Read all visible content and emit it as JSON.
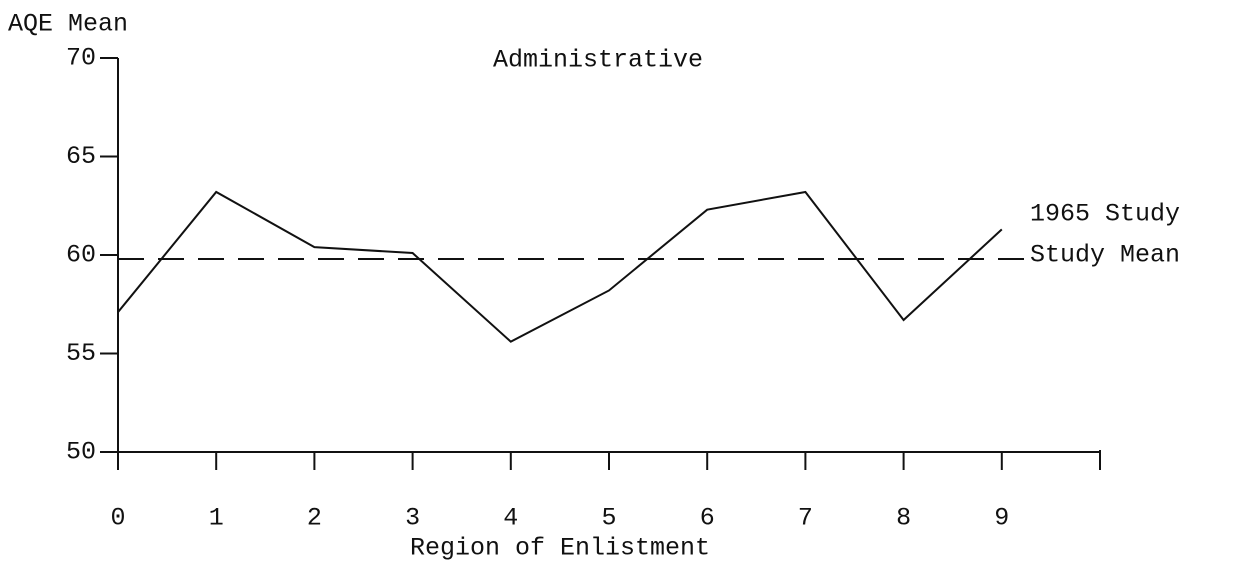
{
  "chart_data": {
    "type": "line",
    "title": "Administrative",
    "x_label": "Region of Enlistment",
    "y_label": "AQE Mean",
    "x": [
      0,
      1,
      2,
      3,
      4,
      5,
      6,
      7,
      8,
      9
    ],
    "series": [
      {
        "name": "Administrative",
        "color": "#111111",
        "values": [
          57.1,
          63.2,
          60.4,
          60.1,
          55.6,
          58.2,
          62.3,
          63.2,
          56.7,
          61.3
        ]
      }
    ],
    "reference_line": {
      "value": 59.8,
      "label": [
        "1965 Study",
        "Study Mean"
      ]
    },
    "xlim": [
      0,
      10
    ],
    "xticks": [
      0,
      1,
      2,
      3,
      4,
      5,
      6,
      7,
      8,
      9
    ],
    "ylim": [
      50,
      70
    ],
    "yticks": [
      50,
      55,
      60,
      65,
      70
    ]
  }
}
